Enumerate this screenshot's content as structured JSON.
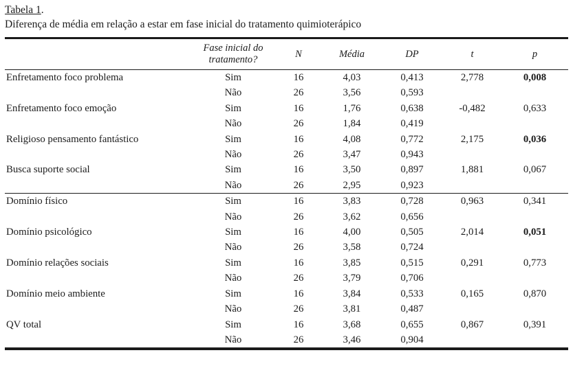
{
  "doc": {
    "title": "Tabela 1",
    "title_period": ".",
    "caption": "Diferença de média em relação a estar em fase inicial do tratamento quimioterápico"
  },
  "table": {
    "headers": {
      "label": "",
      "fase": "Fase inicial do tratamento?",
      "n": "N",
      "media": "Média",
      "dp": "DP",
      "t": "t",
      "p": "p"
    },
    "rows": [
      {
        "label": "Enfretamento foco problema",
        "fase": "Sim",
        "n": "16",
        "media": "4,03",
        "dp": "0,413",
        "t": "2,778",
        "p": "0,008",
        "p_bold": true
      },
      {
        "label": "",
        "fase": "Não",
        "n": "26",
        "media": "3,56",
        "dp": "0,593",
        "t": "",
        "p": ""
      },
      {
        "label": "Enfretamento foco emoção",
        "fase": "Sim",
        "n": "16",
        "media": "1,76",
        "dp": "0,638",
        "t": "-0,482",
        "p": "0,633"
      },
      {
        "label": "",
        "fase": "Não",
        "n": "26",
        "media": "1,84",
        "dp": "0,419",
        "t": "",
        "p": ""
      },
      {
        "label": "Religioso pensamento fantástico",
        "fase": "Sim",
        "n": "16",
        "media": "4,08",
        "dp": "0,772",
        "t": "2,175",
        "p": "0,036",
        "p_bold": true
      },
      {
        "label": "",
        "fase": "Não",
        "n": "26",
        "media": "3,47",
        "dp": "0,943",
        "t": "",
        "p": ""
      },
      {
        "label": "Busca suporte social",
        "fase": "Sim",
        "n": "16",
        "media": "3,50",
        "dp": "0,897",
        "t": "1,881",
        "p": "0,067"
      },
      {
        "label": "",
        "fase": "Não",
        "n": "26",
        "media": "2,95",
        "dp": "0,923",
        "t": "",
        "p": ""
      },
      {
        "label": "Domínio físico",
        "fase": "Sim",
        "n": "16",
        "media": "3,83",
        "dp": "0,728",
        "t": "0,963",
        "p": "0,341",
        "divider_above": true
      },
      {
        "label": "",
        "fase": "Não",
        "n": "26",
        "media": "3,62",
        "dp": "0,656",
        "t": "",
        "p": ""
      },
      {
        "label": "Domínio psicológico",
        "fase": "Sim",
        "n": "16",
        "media": "4,00",
        "dp": "0,505",
        "t": "2,014",
        "p": "0,051",
        "p_bold": true
      },
      {
        "label": "",
        "fase": "Não",
        "n": "26",
        "media": "3,58",
        "dp": "0,724",
        "t": "",
        "p": ""
      },
      {
        "label": "Domínio relações sociais",
        "fase": "Sim",
        "n": "16",
        "media": "3,85",
        "dp": "0,515",
        "t": "0,291",
        "p": "0,773"
      },
      {
        "label": "",
        "fase": "Não",
        "n": "26",
        "media": "3,79",
        "dp": "0,706",
        "t": "",
        "p": ""
      },
      {
        "label": "Domínio meio ambiente",
        "fase": "Sim",
        "n": "16",
        "media": "3,84",
        "dp": "0,533",
        "t": "0,165",
        "p": "0,870"
      },
      {
        "label": "",
        "fase": "Não",
        "n": "26",
        "media": "3,81",
        "dp": "0,487",
        "t": "",
        "p": ""
      },
      {
        "label": "QV total",
        "fase": "Sim",
        "n": "16",
        "media": "3,68",
        "dp": "0,655",
        "t": "0,867",
        "p": "0,391"
      },
      {
        "label": "",
        "fase": "Não",
        "n": "26",
        "media": "3,46",
        "dp": "0,904",
        "t": "",
        "p": ""
      }
    ]
  },
  "colors": {
    "text": "#1b1b1b",
    "rule": "#1a1a1a",
    "background": "#ffffff"
  }
}
